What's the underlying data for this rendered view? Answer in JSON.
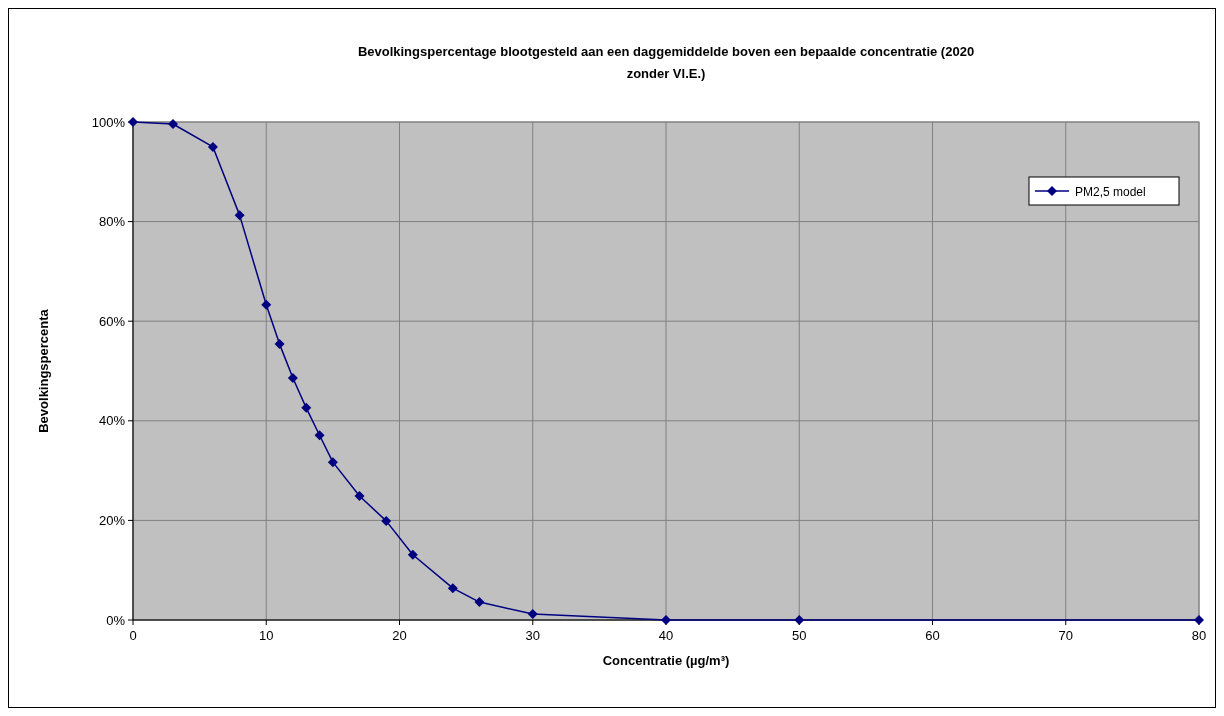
{
  "chart_data": {
    "type": "line",
    "title": "Bevolkingspercentage blootgesteld aan een daggemiddelde boven een bepaalde concentratie (2020 zonder Vl.E.)",
    "xlabel": "Concentratie (µg/m³)",
    "ylabel": "Bevolkingspercenta",
    "x": [
      0,
      3,
      6,
      8,
      10,
      11,
      12,
      13,
      14,
      15,
      17,
      19,
      21,
      24,
      26,
      30,
      40,
      50,
      80
    ],
    "series": [
      {
        "name": "PM2,5 model",
        "color": "#000080",
        "values": [
          100,
          99.6,
          95,
          81.3,
          63.3,
          55.4,
          48.6,
          42.6,
          37.1,
          31.7,
          24.9,
          19.9,
          13.1,
          6.4,
          3.6,
          1.2,
          0,
          0,
          0
        ]
      }
    ],
    "xlim": [
      0,
      80
    ],
    "xticks": [
      0,
      10,
      20,
      30,
      40,
      50,
      60,
      70,
      80
    ],
    "ylim": [
      0,
      100
    ],
    "yticks": [
      {
        "value": 0,
        "label": "0%"
      },
      {
        "value": 20,
        "label": "20%"
      },
      {
        "value": 40,
        "label": "40%"
      },
      {
        "value": 60,
        "label": "60%"
      },
      {
        "value": 80,
        "label": "80%"
      },
      {
        "value": 100,
        "label": "100%"
      }
    ],
    "grid": true,
    "legend": "top right",
    "marker": "diamond",
    "line_style": "solid"
  }
}
